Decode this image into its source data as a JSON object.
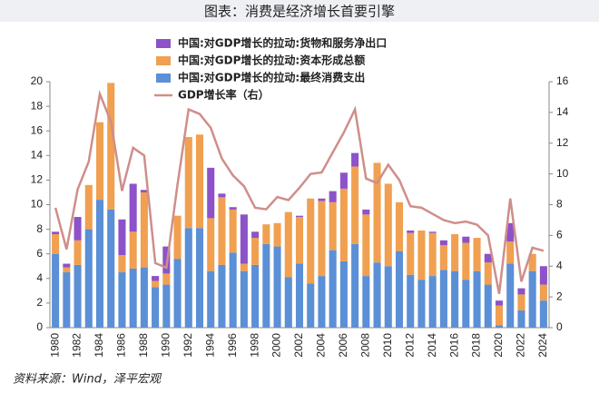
{
  "chart_data": {
    "type": "bar",
    "stacked": true,
    "title": "图表：消费是经济增长首要引擎",
    "source": "资料来源：Wind，泽平宏观",
    "categories": [
      "1980",
      null,
      "1982",
      null,
      "1984",
      null,
      "1986",
      null,
      "1988",
      null,
      "1990",
      null,
      "1992",
      null,
      "1994",
      null,
      "1996",
      null,
      "1998",
      null,
      "2000",
      null,
      "2002",
      null,
      "2004",
      null,
      "2006",
      null,
      "2008",
      null,
      "2010",
      null,
      "2012",
      null,
      "2014",
      null,
      "2016",
      null,
      "2018",
      null,
      "2020",
      null,
      "2022",
      null,
      "2024"
    ],
    "series": [
      {
        "name": "中国:对GDP增长的拉动:最终消费支出",
        "color": "#5b8fd6",
        "values": [
          6.0,
          4.5,
          5.1,
          8.0,
          10.4,
          9.6,
          4.5,
          4.8,
          4.9,
          3.3,
          3.5,
          5.6,
          8.1,
          8.1,
          4.6,
          5.1,
          6.1,
          4.6,
          5.1,
          6.8,
          6.6,
          4.1,
          5.2,
          3.6,
          4.2,
          6.3,
          5.4,
          6.8,
          4.2,
          5.3,
          5.0,
          6.2,
          4.3,
          3.9,
          4.2,
          4.7,
          4.6,
          3.9,
          4.6,
          3.5,
          0.2,
          5.2,
          1.4,
          4.6,
          2.2
        ]
      },
      {
        "name": "中国:对GDP增长的拉动:资本形成总额",
        "color": "#f0a050",
        "values": [
          1.6,
          0.4,
          2.0,
          3.6,
          6.3,
          10.3,
          1.4,
          3.0,
          6.1,
          0.5,
          0.9,
          3.5,
          7.4,
          7.6,
          4.3,
          5.5,
          3.5,
          0.6,
          2.2,
          1.6,
          1.9,
          5.3,
          3.8,
          6.9,
          6.1,
          3.9,
          5.9,
          6.3,
          5.0,
          8.1,
          6.7,
          4.0,
          3.4,
          4.0,
          3.5,
          2.0,
          3.0,
          3.0,
          2.7,
          1.8,
          1.6,
          1.8,
          1.3,
          1.4,
          1.3
        ]
      },
      {
        "name": "中国:对GDP增长的拉动:货物和服务净出口",
        "color": "#8d52c8",
        "values": [
          0.2,
          0.3,
          1.9,
          0,
          0,
          0,
          2.9,
          3.9,
          0.2,
          0.4,
          2.2,
          0,
          0,
          0,
          4.1,
          0.3,
          0.2,
          4.0,
          0.5,
          0,
          0,
          0,
          0.1,
          0,
          0.2,
          0.9,
          1.3,
          1.1,
          0.4,
          0,
          0,
          0,
          0.2,
          0,
          0.1,
          0.4,
          0,
          0.5,
          0,
          0.7,
          0.4,
          1.5,
          0.5,
          0,
          1.5
        ]
      },
      {
        "name": "GDP增长率（右）",
        "type": "line",
        "axis": "y2",
        "color": "#cf8e8a",
        "values": [
          7.8,
          5.1,
          9.0,
          10.8,
          15.2,
          13.4,
          8.9,
          11.7,
          11.2,
          4.2,
          3.9,
          9.3,
          14.2,
          13.9,
          13.0,
          11.0,
          9.9,
          9.2,
          7.8,
          7.7,
          8.5,
          8.3,
          9.1,
          10.0,
          10.1,
          11.4,
          12.7,
          14.2,
          9.7,
          9.4,
          10.6,
          9.6,
          7.9,
          7.8,
          7.4,
          7.0,
          6.8,
          6.9,
          6.7,
          6.0,
          2.2,
          8.4,
          3.0,
          5.2,
          5.0
        ]
      }
    ],
    "ylim": [
      0,
      20
    ],
    "yticks": [
      0,
      2,
      4,
      6,
      8,
      10,
      12,
      14,
      16,
      18,
      20
    ],
    "y2lim": [
      0,
      16
    ],
    "y2ticks": [
      0,
      2,
      4,
      6,
      8,
      10,
      12,
      14,
      16
    ]
  }
}
